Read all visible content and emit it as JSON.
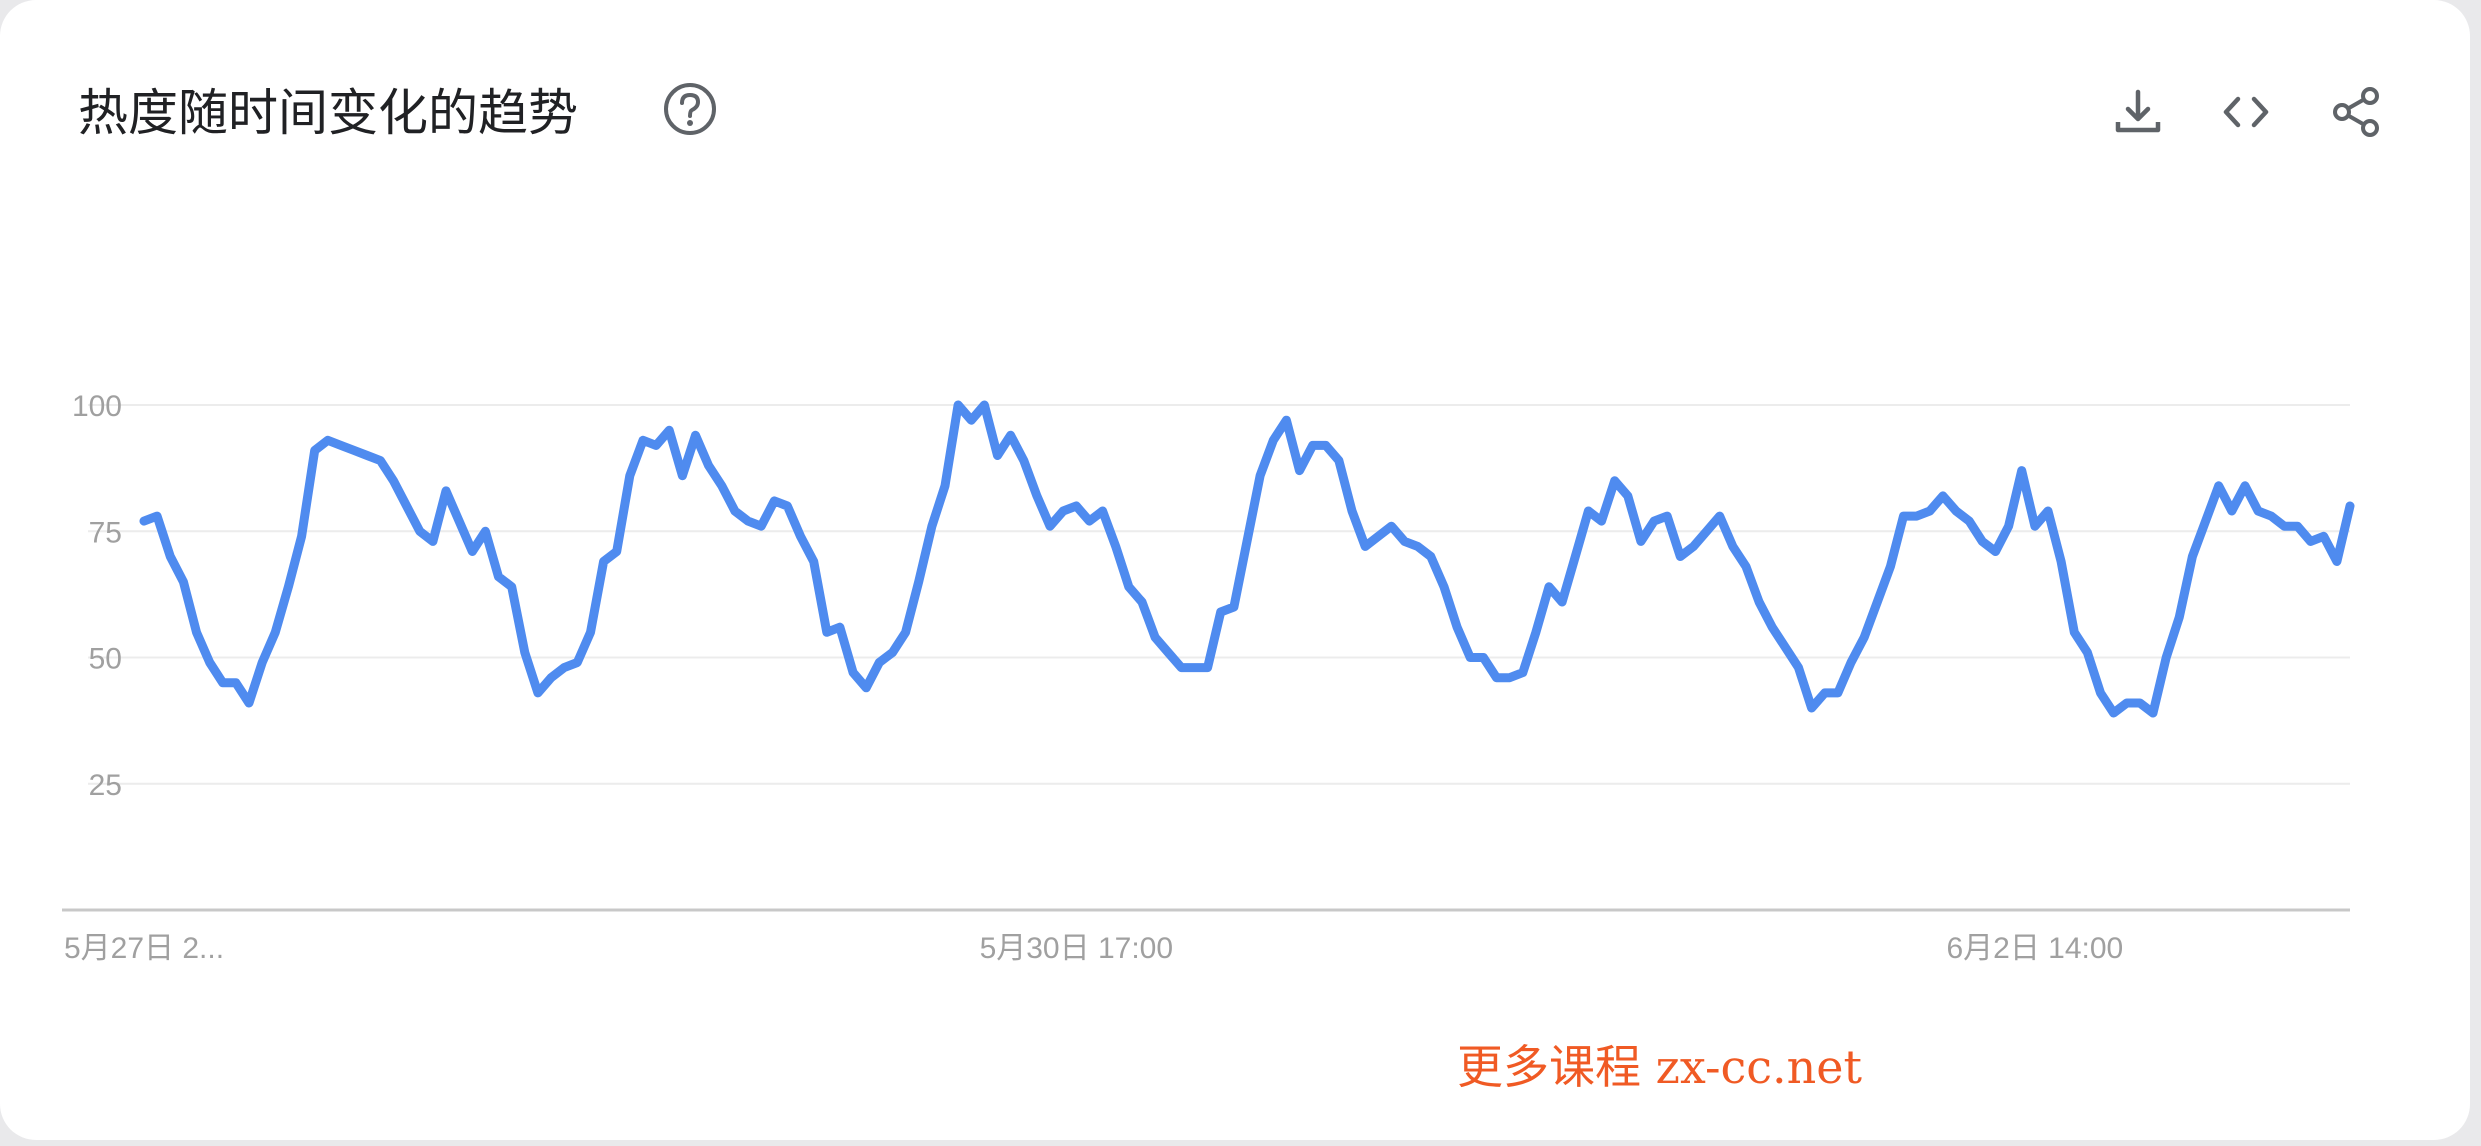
{
  "header": {
    "title": "热度随时间变化的趋势",
    "help_icon": "help-circle-icon",
    "actions": [
      {
        "name": "download-button",
        "icon": "download-icon"
      },
      {
        "name": "embed-button",
        "icon": "code-icon"
      },
      {
        "name": "share-button",
        "icon": "share-icon"
      }
    ]
  },
  "watermark": "更多课程 zx-cc.net",
  "colors": {
    "series": "#4f8bef",
    "grid": "#ececec",
    "axis": "#c8c8c8",
    "tick_text": "#a0a0a0",
    "icon": "#5f6368",
    "watermark": "#f05a24"
  },
  "chart_data": {
    "type": "line",
    "title": "热度随时间变化的趋势",
    "xlabel": "",
    "ylabel": "",
    "ylim": [
      0,
      100
    ],
    "yticks": [
      25,
      50,
      75,
      100
    ],
    "grid": true,
    "x_tick_labels": [
      {
        "index": 0,
        "label": "5月27日 2..."
      },
      {
        "index": 71,
        "label": "5月30日 17:00"
      },
      {
        "index": 144,
        "label": "6月2日 14:00"
      }
    ],
    "series": [
      {
        "values": [
          77,
          78,
          70,
          65,
          55,
          49,
          45,
          45,
          41,
          49,
          55,
          64,
          74,
          91,
          93,
          92,
          91,
          90,
          89,
          85,
          80,
          75,
          73,
          83,
          77,
          71,
          75,
          66,
          64,
          51,
          43,
          46,
          48,
          49,
          55,
          69,
          71,
          86,
          93,
          92,
          95,
          86,
          94,
          88,
          84,
          79,
          77,
          76,
          81,
          80,
          74,
          69,
          55,
          56,
          47,
          44,
          49,
          51,
          55,
          65,
          76,
          84,
          100,
          97,
          100,
          90,
          94,
          89,
          82,
          76,
          79,
          80,
          77,
          79,
          72,
          64,
          61,
          54,
          51,
          48,
          48,
          48,
          59,
          60,
          73,
          86,
          93,
          97,
          87,
          92,
          92,
          89,
          79,
          72,
          74,
          76,
          73,
          72,
          70,
          64,
          56,
          50,
          50,
          46,
          46,
          47,
          55,
          64,
          61,
          70,
          79,
          77,
          85,
          82,
          73,
          77,
          78,
          70,
          72,
          75,
          78,
          72,
          68,
          61,
          56,
          52,
          48,
          40,
          43,
          43,
          49,
          54,
          61,
          68,
          78,
          78,
          79,
          82,
          79,
          77,
          73,
          71,
          76,
          87,
          76,
          79,
          69,
          55,
          51,
          43,
          39,
          41,
          41,
          39,
          50,
          58,
          70,
          77,
          84,
          79,
          84,
          79,
          78,
          76,
          76,
          73,
          74,
          69,
          80
        ]
      }
    ]
  }
}
